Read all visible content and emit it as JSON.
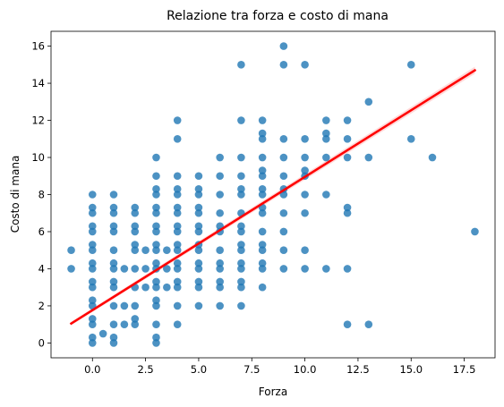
{
  "chart_data": {
    "type": "scatter",
    "title": "Relazione tra forza e costo di mana",
    "xlabel": "Forza",
    "ylabel": "Costo di mana",
    "xlim": [
      -1.95,
      18.95
    ],
    "ylim": [
      -0.8,
      16.8
    ],
    "xticks": [
      0,
      2.5,
      5,
      7.5,
      10,
      12.5,
      15,
      17.5
    ],
    "xtick_labels": [
      "0.0",
      "2.5",
      "5.0",
      "7.5",
      "10.0",
      "12.5",
      "15.0",
      "17.5"
    ],
    "yticks": [
      0,
      2,
      4,
      6,
      8,
      10,
      12,
      14,
      16
    ],
    "ytick_labels": [
      "0",
      "2",
      "4",
      "6",
      "8",
      "10",
      "12",
      "14",
      "16"
    ],
    "grid": false,
    "point_color": "#1f77b4",
    "regression": {
      "color": "#ff0000",
      "from": [
        -1,
        1.05
      ],
      "to": [
        18,
        14.7
      ]
    },
    "points": [
      [
        -1,
        5
      ],
      [
        -1,
        4
      ],
      [
        0,
        0
      ],
      [
        0,
        0.3
      ],
      [
        0,
        1
      ],
      [
        0,
        1.3
      ],
      [
        0,
        2
      ],
      [
        0,
        2.3
      ],
      [
        0,
        3
      ],
      [
        0,
        3.3
      ],
      [
        0,
        4
      ],
      [
        0,
        4.3
      ],
      [
        0,
        5
      ],
      [
        0,
        5.3
      ],
      [
        0,
        6
      ],
      [
        0,
        6.3
      ],
      [
        0,
        7
      ],
      [
        0,
        7.3
      ],
      [
        0,
        8
      ],
      [
        0.5,
        0.5
      ],
      [
        1,
        0
      ],
      [
        1,
        1
      ],
      [
        1,
        2
      ],
      [
        1,
        3
      ],
      [
        1,
        4
      ],
      [
        1,
        5
      ],
      [
        1,
        6
      ],
      [
        1,
        7
      ],
      [
        1,
        8
      ],
      [
        1,
        0.3
      ],
      [
        1,
        3.3
      ],
      [
        1,
        4.3
      ],
      [
        1,
        6.3
      ],
      [
        1,
        7.3
      ],
      [
        1.5,
        1
      ],
      [
        1.5,
        2
      ],
      [
        1.5,
        4
      ],
      [
        2,
        1
      ],
      [
        2,
        2
      ],
      [
        2,
        3
      ],
      [
        2,
        4
      ],
      [
        2,
        5
      ],
      [
        2,
        6
      ],
      [
        2,
        7
      ],
      [
        2,
        1.3
      ],
      [
        2,
        5.3
      ],
      [
        2,
        6.3
      ],
      [
        2,
        7.3
      ],
      [
        2.5,
        3
      ],
      [
        2.5,
        4
      ],
      [
        2.5,
        5
      ],
      [
        3,
        0
      ],
      [
        3,
        1
      ],
      [
        3,
        2
      ],
      [
        3,
        3
      ],
      [
        3,
        4
      ],
      [
        3,
        5
      ],
      [
        3,
        6
      ],
      [
        3,
        7
      ],
      [
        3,
        8
      ],
      [
        3,
        9
      ],
      [
        3,
        10
      ],
      [
        3,
        0.3
      ],
      [
        3,
        2.3
      ],
      [
        3,
        3.3
      ],
      [
        3,
        4.3
      ],
      [
        3,
        5.3
      ],
      [
        3,
        6.3
      ],
      [
        3,
        7.3
      ],
      [
        3,
        8.3
      ],
      [
        3.5,
        3
      ],
      [
        3.5,
        4
      ],
      [
        3.5,
        5
      ],
      [
        4,
        1
      ],
      [
        4,
        2
      ],
      [
        4,
        3
      ],
      [
        4,
        4
      ],
      [
        4,
        5
      ],
      [
        4,
        6
      ],
      [
        4,
        7
      ],
      [
        4,
        8
      ],
      [
        4,
        9
      ],
      [
        4,
        11
      ],
      [
        4,
        12
      ],
      [
        4,
        3.3
      ],
      [
        4,
        4.3
      ],
      [
        4,
        5.3
      ],
      [
        4,
        6.3
      ],
      [
        4,
        7.3
      ],
      [
        4,
        8.3
      ],
      [
        5,
        2
      ],
      [
        5,
        3
      ],
      [
        5,
        4
      ],
      [
        5,
        5
      ],
      [
        5,
        6
      ],
      [
        5,
        7
      ],
      [
        5,
        8
      ],
      [
        5,
        9
      ],
      [
        5,
        3.3
      ],
      [
        5,
        4.3
      ],
      [
        5,
        5.3
      ],
      [
        5,
        6.3
      ],
      [
        5,
        7.3
      ],
      [
        5,
        8.3
      ],
      [
        6,
        2
      ],
      [
        6,
        3
      ],
      [
        6,
        4
      ],
      [
        6,
        5
      ],
      [
        6,
        6
      ],
      [
        6,
        7
      ],
      [
        6,
        8
      ],
      [
        6,
        9
      ],
      [
        6,
        10
      ],
      [
        6,
        3.3
      ],
      [
        6,
        4.3
      ],
      [
        6,
        6.3
      ],
      [
        7,
        2
      ],
      [
        7,
        3
      ],
      [
        7,
        4
      ],
      [
        7,
        5
      ],
      [
        7,
        6
      ],
      [
        7,
        7
      ],
      [
        7,
        8
      ],
      [
        7,
        9
      ],
      [
        7,
        10
      ],
      [
        7,
        12
      ],
      [
        7,
        15
      ],
      [
        7,
        3.3
      ],
      [
        7,
        4.3
      ],
      [
        7,
        5.3
      ],
      [
        7,
        6.3
      ],
      [
        7,
        8.3
      ],
      [
        8,
        3
      ],
      [
        8,
        4
      ],
      [
        8,
        5
      ],
      [
        8,
        6
      ],
      [
        8,
        7
      ],
      [
        8,
        8
      ],
      [
        8,
        9
      ],
      [
        8,
        10
      ],
      [
        8,
        11
      ],
      [
        8,
        12
      ],
      [
        8,
        4.3
      ],
      [
        8,
        5.3
      ],
      [
        8,
        7.3
      ],
      [
        8,
        8.3
      ],
      [
        8,
        9.3
      ],
      [
        8,
        11.3
      ],
      [
        9,
        4
      ],
      [
        9,
        5
      ],
      [
        9,
        6
      ],
      [
        9,
        7
      ],
      [
        9,
        8
      ],
      [
        9,
        9
      ],
      [
        9,
        10
      ],
      [
        9,
        11
      ],
      [
        9,
        15
      ],
      [
        9,
        16
      ],
      [
        9,
        8.3
      ],
      [
        10,
        4
      ],
      [
        10,
        5
      ],
      [
        10,
        7
      ],
      [
        10,
        8
      ],
      [
        10,
        9
      ],
      [
        10,
        10
      ],
      [
        10,
        11
      ],
      [
        10,
        15
      ],
      [
        10,
        9.3
      ],
      [
        11,
        4
      ],
      [
        11,
        8
      ],
      [
        11,
        10
      ],
      [
        11,
        11
      ],
      [
        11,
        12
      ],
      [
        11,
        11.3
      ],
      [
        12,
        1
      ],
      [
        12,
        4
      ],
      [
        12,
        7
      ],
      [
        12,
        10
      ],
      [
        12,
        11
      ],
      [
        12,
        12
      ],
      [
        12,
        7.3
      ],
      [
        13,
        1
      ],
      [
        13,
        10
      ],
      [
        13,
        13
      ],
      [
        15,
        11
      ],
      [
        15,
        15
      ],
      [
        16,
        10
      ],
      [
        18,
        6
      ]
    ]
  }
}
